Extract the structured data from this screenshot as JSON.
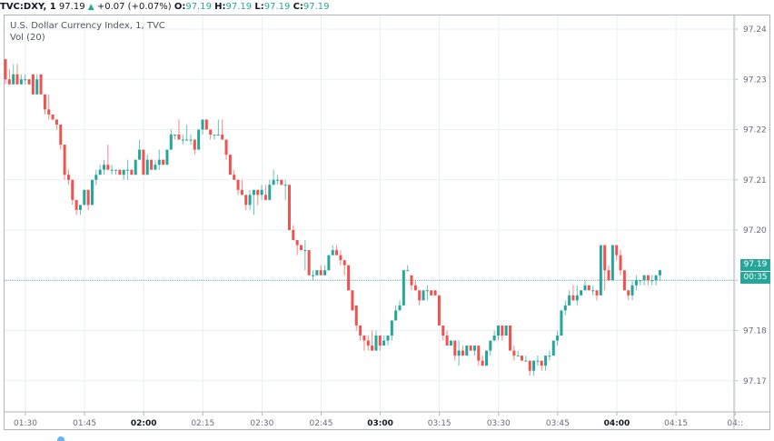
{
  "header": {
    "symbol": "TVC:DXY, 1",
    "last": "97.19",
    "change": "+0.07 (+0.07%)",
    "open_label": "O:",
    "open": "97.19",
    "high_label": "H:",
    "high": "97.19",
    "low_label": "L:",
    "low": "97.19",
    "close_label": "C:",
    "close": "97.19"
  },
  "legend": {
    "title": "U.S. Dollar Currency Index, 1, TVC",
    "indicator": "Vol (20)"
  },
  "price_tag": {
    "value": "97.19",
    "countdown": "00:35"
  },
  "colors": {
    "up": "#26a69a",
    "down": "#ef5350",
    "grid": "#e9eff3",
    "axis": "#b2b5be"
  },
  "chart_data": {
    "type": "candlestick",
    "title": "U.S. Dollar Currency Index, 1, TVC",
    "interval": "1 minute",
    "xlabel": "",
    "ylabel": "",
    "ylim": [
      97.168,
      97.243
    ],
    "y_ticks": [
      "97.24",
      "97.23",
      "97.22",
      "97.21",
      "97.20",
      "97.19",
      "97.18",
      "97.17"
    ],
    "x_ticks": [
      "01:30",
      "01:45",
      "02:00",
      "02:15",
      "02:30",
      "02:45",
      "03:00",
      "03:15",
      "03:30",
      "03:45",
      "04:00",
      "04:15",
      "04::"
    ],
    "x_ticks_bold": [
      "02:00",
      "03:00",
      "04:00"
    ],
    "current_price": 97.19,
    "grid": true,
    "candles": [
      [
        97.234,
        97.234,
        97.229,
        97.23
      ],
      [
        97.23,
        97.232,
        97.229,
        97.229
      ],
      [
        97.229,
        97.233,
        97.229,
        97.231
      ],
      [
        97.231,
        97.233,
        97.229,
        97.229
      ],
      [
        97.229,
        97.231,
        97.229,
        97.23
      ],
      [
        97.23,
        97.231,
        97.229,
        97.23
      ],
      [
        97.23,
        97.23,
        97.229,
        97.229
      ],
      [
        97.231,
        97.231,
        97.227,
        97.227
      ],
      [
        97.227,
        97.231,
        97.227,
        97.23
      ],
      [
        97.231,
        97.231,
        97.227,
        97.227
      ],
      [
        97.227,
        97.227,
        97.223,
        97.224
      ],
      [
        97.224,
        97.227,
        97.222,
        97.223
      ],
      [
        97.223,
        97.223,
        97.222,
        97.222
      ],
      [
        97.222,
        97.222,
        97.22,
        97.221
      ],
      [
        97.221,
        97.221,
        97.216,
        97.217
      ],
      [
        97.217,
        97.217,
        97.21,
        97.211
      ],
      [
        97.211,
        97.212,
        97.209,
        97.21
      ],
      [
        97.21,
        97.21,
        97.205,
        97.206
      ],
      [
        97.206,
        97.206,
        97.203,
        97.204
      ],
      [
        97.204,
        97.205,
        97.203,
        97.205
      ],
      [
        97.205,
        97.208,
        97.205,
        97.208
      ],
      [
        97.208,
        97.208,
        97.204,
        97.205
      ],
      [
        97.205,
        97.21,
        97.205,
        97.21
      ],
      [
        97.21,
        97.212,
        97.209,
        97.211
      ],
      [
        97.211,
        97.213,
        97.211,
        97.212
      ],
      [
        97.212,
        97.214,
        97.211,
        97.213
      ],
      [
        97.213,
        97.217,
        97.212,
        97.212
      ],
      [
        97.212,
        97.213,
        97.211,
        97.212
      ],
      [
        97.212,
        97.212,
        97.211,
        97.212
      ],
      [
        97.212,
        97.212,
        97.211,
        97.211
      ],
      [
        97.211,
        97.212,
        97.21,
        97.212
      ],
      [
        97.212,
        97.214,
        97.21,
        97.212
      ],
      [
        97.212,
        97.212,
        97.211,
        97.211
      ],
      [
        97.211,
        97.214,
        97.211,
        97.214
      ],
      [
        97.214,
        97.218,
        97.214,
        97.216
      ],
      [
        97.216,
        97.216,
        97.211,
        97.211
      ],
      [
        97.211,
        97.215,
        97.211,
        97.214
      ],
      [
        97.214,
        97.214,
        97.212,
        97.212
      ],
      [
        97.212,
        97.214,
        97.212,
        97.213
      ],
      [
        97.213,
        97.216,
        97.212,
        97.214
      ],
      [
        97.214,
        97.214,
        97.213,
        97.213
      ],
      [
        97.213,
        97.216,
        97.213,
        97.216
      ],
      [
        97.216,
        97.22,
        97.216,
        97.219
      ],
      [
        97.219,
        97.219,
        97.218,
        97.219
      ],
      [
        97.219,
        97.222,
        97.218,
        97.218
      ],
      [
        97.218,
        97.219,
        97.217,
        97.218
      ],
      [
        97.218,
        97.221,
        97.218,
        97.218
      ],
      [
        97.218,
        97.219,
        97.217,
        97.218
      ],
      [
        97.218,
        97.218,
        97.215,
        97.216
      ],
      [
        97.216,
        97.22,
        97.216,
        97.22
      ],
      [
        97.22,
        97.222,
        97.219,
        97.222
      ],
      [
        97.222,
        97.222,
        97.22,
        97.22
      ],
      [
        97.22,
        97.22,
        97.218,
        97.219
      ],
      [
        97.219,
        97.219,
        97.218,
        97.219
      ],
      [
        97.219,
        97.222,
        97.219,
        97.219
      ],
      [
        97.219,
        97.222,
        97.219,
        97.218
      ],
      [
        97.218,
        97.218,
        97.214,
        97.215
      ],
      [
        97.215,
        97.215,
        97.212,
        97.211
      ],
      [
        97.211,
        97.212,
        97.21,
        97.21
      ],
      [
        97.21,
        97.21,
        97.207,
        97.208
      ],
      [
        97.208,
        97.21,
        97.207,
        97.207
      ],
      [
        97.207,
        97.207,
        97.204,
        97.205
      ],
      [
        97.205,
        97.208,
        97.204,
        97.207
      ],
      [
        97.207,
        97.207,
        97.203,
        97.208
      ],
      [
        97.208,
        97.208,
        97.205,
        97.207
      ],
      [
        97.207,
        97.209,
        97.206,
        97.208
      ],
      [
        97.207,
        97.209,
        97.206,
        97.206
      ],
      [
        97.206,
        97.21,
        97.206,
        97.209
      ],
      [
        97.209,
        97.212,
        97.209,
        97.21
      ],
      [
        97.21,
        97.211,
        97.209,
        97.21
      ],
      [
        97.21,
        97.21,
        97.209,
        97.209
      ],
      [
        97.209,
        97.21,
        97.206,
        97.209
      ],
      [
        97.209,
        97.209,
        97.205,
        97.2
      ],
      [
        97.2,
        97.201,
        97.198,
        97.198
      ],
      [
        97.198,
        97.198,
        97.195,
        97.197
      ],
      [
        97.197,
        97.197,
        97.196,
        97.196
      ],
      [
        97.196,
        97.198,
        97.192,
        97.196
      ],
      [
        97.196,
        97.196,
        97.191,
        97.191
      ],
      [
        97.191,
        97.192,
        97.19,
        97.191
      ],
      [
        97.191,
        97.192,
        97.191,
        97.192
      ],
      [
        97.192,
        97.193,
        97.191,
        97.191
      ],
      [
        97.191,
        97.193,
        97.191,
        97.192
      ],
      [
        97.192,
        97.195,
        97.192,
        97.195
      ],
      [
        97.195,
        97.197,
        97.195,
        97.196
      ],
      [
        97.196,
        97.197,
        97.195,
        97.195
      ],
      [
        97.195,
        97.196,
        97.193,
        97.194
      ],
      [
        97.194,
        97.194,
        97.191,
        97.193
      ],
      [
        97.193,
        97.193,
        97.188,
        97.188
      ],
      [
        97.188,
        97.188,
        97.185,
        97.184
      ],
      [
        97.185,
        97.185,
        97.18,
        97.181
      ],
      [
        97.181,
        97.181,
        97.178,
        97.179
      ],
      [
        97.179,
        97.179,
        97.176,
        97.178
      ],
      [
        97.178,
        97.179,
        97.176,
        97.177
      ],
      [
        97.177,
        97.18,
        97.176,
        97.176
      ],
      [
        97.176,
        97.18,
        97.176,
        97.179
      ],
      [
        97.179,
        97.179,
        97.176,
        97.177
      ],
      [
        97.177,
        97.179,
        97.177,
        97.178
      ],
      [
        97.178,
        97.179,
        97.177,
        97.179
      ],
      [
        97.179,
        97.182,
        97.178,
        97.182
      ],
      [
        97.182,
        97.185,
        97.182,
        97.184
      ],
      [
        97.184,
        97.186,
        97.184,
        97.185
      ],
      [
        97.185,
        97.192,
        97.185,
        97.192
      ],
      [
        97.192,
        97.193,
        97.192,
        97.192
      ],
      [
        97.191,
        97.191,
        97.188,
        97.189
      ],
      [
        97.189,
        97.19,
        97.188,
        97.188
      ],
      [
        97.188,
        97.188,
        97.185,
        97.186
      ],
      [
        97.186,
        97.188,
        97.186,
        97.188
      ],
      [
        97.188,
        97.189,
        97.186,
        97.188
      ],
      [
        97.188,
        97.188,
        97.187,
        97.187
      ],
      [
        97.188,
        97.188,
        97.187,
        97.187
      ],
      [
        97.187,
        97.187,
        97.181,
        97.181
      ],
      [
        97.181,
        97.181,
        97.178,
        97.179
      ],
      [
        97.179,
        97.18,
        97.177,
        97.177
      ],
      [
        97.177,
        97.178,
        97.177,
        97.178
      ],
      [
        97.178,
        97.178,
        97.174,
        97.175
      ],
      [
        97.175,
        97.178,
        97.173,
        97.176
      ],
      [
        97.176,
        97.177,
        97.175,
        97.175
      ],
      [
        97.175,
        97.177,
        97.175,
        97.177
      ],
      [
        97.177,
        97.177,
        97.176,
        97.176
      ],
      [
        97.176,
        97.177,
        97.175,
        97.177
      ],
      [
        97.177,
        97.177,
        97.173,
        97.174
      ],
      [
        97.174,
        97.175,
        97.173,
        97.173
      ],
      [
        97.173,
        97.176,
        97.173,
        97.176
      ],
      [
        97.176,
        97.178,
        97.175,
        97.178
      ],
      [
        97.178,
        97.18,
        97.178,
        97.179
      ],
      [
        97.179,
        97.181,
        97.178,
        97.181
      ],
      [
        97.181,
        97.181,
        97.178,
        97.179
      ],
      [
        97.179,
        97.181,
        97.179,
        97.181
      ],
      [
        97.181,
        97.181,
        97.176,
        97.176
      ],
      [
        97.176,
        97.177,
        97.174,
        97.175
      ],
      [
        97.175,
        97.176,
        97.175,
        97.175
      ],
      [
        97.175,
        97.175,
        97.174,
        97.174
      ],
      [
        97.174,
        97.175,
        97.174,
        97.174
      ],
      [
        97.174,
        97.174,
        97.171,
        97.172
      ],
      [
        97.172,
        97.174,
        97.171,
        97.174
      ],
      [
        97.174,
        97.175,
        97.173,
        97.174
      ],
      [
        97.174,
        97.174,
        97.172,
        97.173
      ],
      [
        97.173,
        97.175,
        97.172,
        97.175
      ],
      [
        97.175,
        97.176,
        97.174,
        97.175
      ],
      [
        97.175,
        97.178,
        97.175,
        97.178
      ],
      [
        97.178,
        97.18,
        97.177,
        97.179
      ],
      [
        97.179,
        97.184,
        97.179,
        97.184
      ],
      [
        97.184,
        97.186,
        97.183,
        97.185
      ],
      [
        97.185,
        97.188,
        97.185,
        97.187
      ],
      [
        97.187,
        97.189,
        97.186,
        97.186
      ],
      [
        97.186,
        97.189,
        97.185,
        97.187
      ],
      [
        97.187,
        97.188,
        97.187,
        97.188
      ],
      [
        97.188,
        97.19,
        97.188,
        97.189
      ],
      [
        97.189,
        97.189,
        97.188,
        97.188
      ],
      [
        97.188,
        97.189,
        97.187,
        97.188
      ],
      [
        97.188,
        97.188,
        97.186,
        97.187
      ],
      [
        97.187,
        97.19,
        97.187,
        97.197
      ],
      [
        97.197,
        97.197,
        97.188,
        97.192
      ],
      [
        97.192,
        97.193,
        97.191,
        97.19
      ],
      [
        97.19,
        97.197,
        97.19,
        97.197
      ],
      [
        97.197,
        97.197,
        97.194,
        97.195
      ],
      [
        97.195,
        97.196,
        97.191,
        97.192
      ],
      [
        97.192,
        97.192,
        97.188,
        97.188
      ],
      [
        97.188,
        97.188,
        97.186,
        97.187
      ],
      [
        97.187,
        97.19,
        97.186,
        97.189
      ],
      [
        97.189,
        97.191,
        97.188,
        97.19
      ],
      [
        97.19,
        97.19,
        97.189,
        97.19
      ],
      [
        97.19,
        97.191,
        97.189,
        97.191
      ],
      [
        97.191,
        97.191,
        97.189,
        97.19
      ],
      [
        97.19,
        97.191,
        97.189,
        97.19
      ],
      [
        97.19,
        97.191,
        97.189,
        97.191
      ],
      [
        97.191,
        97.192,
        97.19,
        97.192
      ]
    ]
  }
}
